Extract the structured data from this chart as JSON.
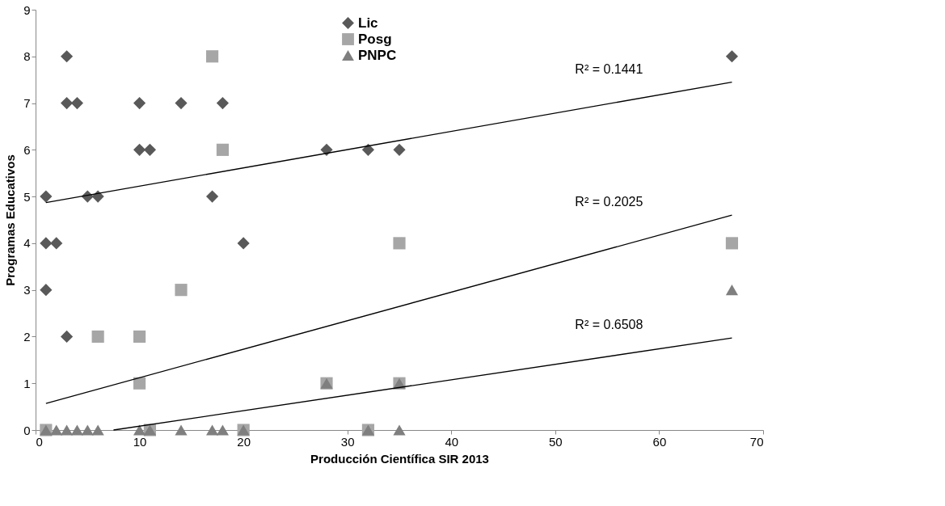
{
  "chart_data": {
    "type": "scatter",
    "xlabel": "Producción Científica SIR 2013",
    "ylabel": "Programas Educativos",
    "xlim": [
      0,
      70
    ],
    "ylim": [
      0,
      9
    ],
    "xticks": [
      0,
      10,
      20,
      30,
      40,
      50,
      60,
      70
    ],
    "yticks": [
      0,
      1,
      2,
      3,
      4,
      5,
      6,
      7,
      8,
      9
    ],
    "grid": false,
    "legend": "top",
    "series": [
      {
        "name": "Lic",
        "color": "#595959",
        "marker": "diamond",
        "x": [
          1,
          1,
          1,
          2,
          3,
          3,
          3,
          4,
          5,
          6,
          10,
          10,
          11,
          14,
          17,
          18,
          20,
          28,
          32,
          35,
          67
        ],
        "values": [
          5,
          4,
          3,
          4,
          8,
          7,
          2,
          7,
          5,
          5,
          7,
          6,
          6,
          7,
          5,
          7,
          4,
          6,
          6,
          6,
          8
        ]
      },
      {
        "name": "Posg",
        "color": "#a6a6a6",
        "marker": "square",
        "x": [
          1,
          6,
          10,
          10,
          11,
          14,
          17,
          18,
          20,
          28,
          32,
          35,
          35,
          67
        ],
        "values": [
          0,
          2,
          2,
          1,
          0,
          3,
          8,
          6,
          0,
          1,
          0,
          4,
          1,
          4
        ]
      },
      {
        "name": "PNPC",
        "color": "#7f7f7f",
        "marker": "triangle",
        "x": [
          1,
          2,
          3,
          4,
          5,
          6,
          10,
          11,
          14,
          17,
          18,
          20,
          28,
          32,
          35,
          35,
          67
        ],
        "values": [
          0,
          0,
          0,
          0,
          0,
          0,
          0,
          0,
          0,
          0,
          0,
          0,
          1,
          0,
          1,
          0,
          3
        ]
      },
      {
        "type": "line",
        "color": "#000000",
        "x": [
          1,
          67
        ],
        "values": [
          4.87,
          7.45
        ]
      },
      {
        "type": "line",
        "color": "#000000",
        "x": [
          1,
          67
        ],
        "values": [
          0.57,
          4.6
        ]
      },
      {
        "type": "line",
        "color": "#000000",
        "x": [
          7.5,
          67
        ],
        "values": [
          0,
          1.97
        ]
      }
    ],
    "annotations": [
      "R² = 0.1441",
      "R² = 0.2025",
      "R² = 0.6508"
    ]
  }
}
